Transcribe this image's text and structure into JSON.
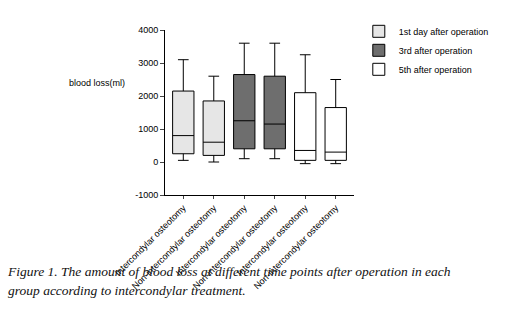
{
  "chart_data": {
    "type": "box",
    "ylabel": "blood loss(ml)",
    "annotations": [
      "Figure 1. The amount of blood loss at different time points after operation in each group according to intercondylar treatment."
    ],
    "categories": [
      "Intercondylar osteotomy",
      "Non-intercondylar osteotomy",
      "Intercondylar osteotomy",
      "Non-intercondylar osteotomy",
      "Intercondylar osteotomy",
      "Non-intercondylar osteotomy"
    ],
    "series": [
      {
        "name": "1st day after operation",
        "color": "#e6e6e6",
        "values": [
          {
            "min": 50,
            "q1": 250,
            "median": 800,
            "q3": 2150,
            "max": 3100
          },
          {
            "min": 0,
            "q1": 200,
            "median": 600,
            "q3": 1850,
            "max": 2600
          },
          null,
          null,
          null,
          null
        ]
      },
      {
        "name": "3rd after operation",
        "color": "#6e6e6e",
        "values": [
          null,
          null,
          {
            "min": 100,
            "q1": 400,
            "median": 1250,
            "q3": 2650,
            "max": 3600
          },
          {
            "min": 100,
            "q1": 400,
            "median": 1150,
            "q3": 2600,
            "max": 3600
          },
          null,
          null
        ]
      },
      {
        "name": "5th after operation",
        "color": "#ffffff",
        "values": [
          null,
          null,
          null,
          null,
          {
            "min": -50,
            "q1": 50,
            "median": 350,
            "q3": 2100,
            "max": 3250
          },
          {
            "min": -50,
            "q1": 50,
            "median": 300,
            "q3": 1650,
            "max": 2500
          }
        ]
      }
    ],
    "ylim": [
      -1000,
      4000
    ],
    "yticks": [
      -1000,
      0,
      1000,
      2000,
      3000,
      4000
    ],
    "grid": false,
    "legend": "top right"
  }
}
